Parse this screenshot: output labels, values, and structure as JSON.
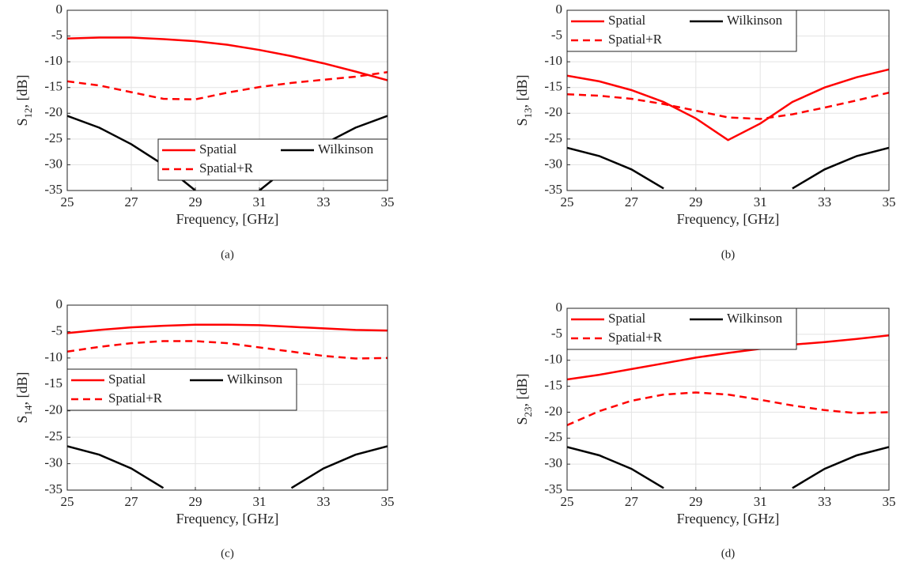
{
  "chart_data": [
    {
      "type": "line",
      "caption": "(a)",
      "xlabel": "Frequency, [GHz]",
      "ylabel": [
        "S",
        "12",
        ", [dB]"
      ],
      "x": [
        25,
        26,
        27,
        28,
        29,
        30,
        31,
        32,
        33,
        34,
        35
      ],
      "xlim": [
        25,
        35
      ],
      "xticks": [
        25,
        27,
        29,
        31,
        33,
        35
      ],
      "ylim": [
        -35,
        0
      ],
      "yticks": [
        -35,
        -30,
        -25,
        -20,
        -15,
        -10,
        -5,
        0
      ],
      "grid": true,
      "legend": "southeast",
      "series": [
        {
          "name": "Spatial",
          "color": "#ff0000",
          "dashed": false,
          "values": [
            -5.5,
            -5.3,
            -5.3,
            -5.6,
            -6.0,
            -6.7,
            -7.7,
            -8.9,
            -10.3,
            -11.9,
            -13.6
          ]
        },
        {
          "name": "Wilkinson",
          "color": "#000000",
          "dashed": false,
          "values": [
            -20.5,
            -22.8,
            -26.0,
            -30.0,
            -35.0,
            null,
            -35.0,
            -30.0,
            -26.0,
            -22.8,
            -20.5
          ]
        },
        {
          "name": "Spatial+R",
          "color": "#ff0000",
          "dashed": true,
          "values": [
            -13.8,
            -14.6,
            -15.9,
            -17.2,
            -17.3,
            -16.0,
            -14.9,
            -14.1,
            -13.5,
            -12.9,
            -12.0
          ]
        }
      ]
    },
    {
      "type": "line",
      "caption": "(b)",
      "xlabel": "Frequency, [GHz]",
      "ylabel": [
        "S",
        "13",
        ", [dB]"
      ],
      "x": [
        25,
        26,
        27,
        28,
        29,
        30,
        31,
        32,
        33,
        34,
        35
      ],
      "xlim": [
        25,
        35
      ],
      "xticks": [
        25,
        27,
        29,
        31,
        33,
        35
      ],
      "ylim": [
        -35,
        0
      ],
      "yticks": [
        -35,
        -30,
        -25,
        -20,
        -15,
        -10,
        -5,
        0
      ],
      "grid": true,
      "legend": "northwest",
      "series": [
        {
          "name": "Spatial",
          "color": "#ff0000",
          "dashed": false,
          "values": [
            -12.7,
            -13.8,
            -15.5,
            -17.8,
            -21.0,
            -25.2,
            -22.0,
            -17.8,
            -15.0,
            -13.0,
            -11.5
          ]
        },
        {
          "name": "Wilkinson",
          "color": "#000000",
          "dashed": false,
          "values": [
            -26.7,
            -28.3,
            -30.9,
            -34.6,
            null,
            null,
            null,
            -34.6,
            -30.9,
            -28.3,
            -26.7
          ]
        },
        {
          "name": "Spatial+R",
          "color": "#ff0000",
          "dashed": true,
          "values": [
            -16.3,
            -16.6,
            -17.2,
            -18.2,
            -19.5,
            -20.8,
            -21.1,
            -20.2,
            -18.9,
            -17.5,
            -16.0
          ]
        }
      ]
    },
    {
      "type": "line",
      "caption": "(c)",
      "xlabel": "Frequency, [GHz]",
      "ylabel": [
        "S",
        "14",
        ", [dB]"
      ],
      "x": [
        25,
        26,
        27,
        28,
        29,
        30,
        31,
        32,
        33,
        34,
        35
      ],
      "xlim": [
        25,
        35
      ],
      "xticks": [
        25,
        27,
        29,
        31,
        33,
        35
      ],
      "ylim": [
        -35,
        0
      ],
      "yticks": [
        -35,
        -30,
        -25,
        -20,
        -15,
        -10,
        -5,
        0
      ],
      "grid": true,
      "legend": "west",
      "series": [
        {
          "name": "Spatial",
          "color": "#ff0000",
          "dashed": false,
          "values": [
            -5.3,
            -4.7,
            -4.2,
            -3.9,
            -3.7,
            -3.7,
            -3.8,
            -4.1,
            -4.4,
            -4.7,
            -4.8
          ]
        },
        {
          "name": "Wilkinson",
          "color": "#000000",
          "dashed": false,
          "values": [
            -26.7,
            -28.3,
            -30.9,
            -34.6,
            null,
            null,
            null,
            -34.6,
            -30.9,
            -28.3,
            -26.7
          ]
        },
        {
          "name": "Spatial+R",
          "color": "#ff0000",
          "dashed": true,
          "values": [
            -8.8,
            -7.9,
            -7.2,
            -6.8,
            -6.8,
            -7.2,
            -8.0,
            -8.8,
            -9.6,
            -10.1,
            -10.0
          ]
        }
      ]
    },
    {
      "type": "line",
      "caption": "(d)",
      "xlabel": "Frequency, [GHz]",
      "ylabel": [
        "S",
        "23",
        ", [dB]"
      ],
      "x": [
        25,
        26,
        27,
        28,
        29,
        30,
        31,
        32,
        33,
        34,
        35
      ],
      "xlim": [
        25,
        35
      ],
      "xticks": [
        25,
        27,
        29,
        31,
        33,
        35
      ],
      "ylim": [
        -35,
        0
      ],
      "yticks": [
        -35,
        -30,
        -25,
        -20,
        -15,
        -10,
        -5,
        0
      ],
      "grid": true,
      "legend": "northwest",
      "series": [
        {
          "name": "Spatial",
          "color": "#ff0000",
          "dashed": false,
          "values": [
            -13.7,
            -12.8,
            -11.7,
            -10.6,
            -9.5,
            -8.6,
            -7.8,
            -7.0,
            -6.5,
            -5.9,
            -5.2
          ]
        },
        {
          "name": "Wilkinson",
          "color": "#000000",
          "dashed": false,
          "values": [
            -26.7,
            -28.3,
            -30.9,
            -34.6,
            null,
            null,
            null,
            -34.6,
            -30.9,
            -28.3,
            -26.7
          ]
        },
        {
          "name": "Spatial+R",
          "color": "#ff0000",
          "dashed": true,
          "values": [
            -22.5,
            -19.8,
            -17.8,
            -16.6,
            -16.2,
            -16.6,
            -17.6,
            -18.7,
            -19.6,
            -20.2,
            -20.0
          ]
        }
      ]
    }
  ]
}
